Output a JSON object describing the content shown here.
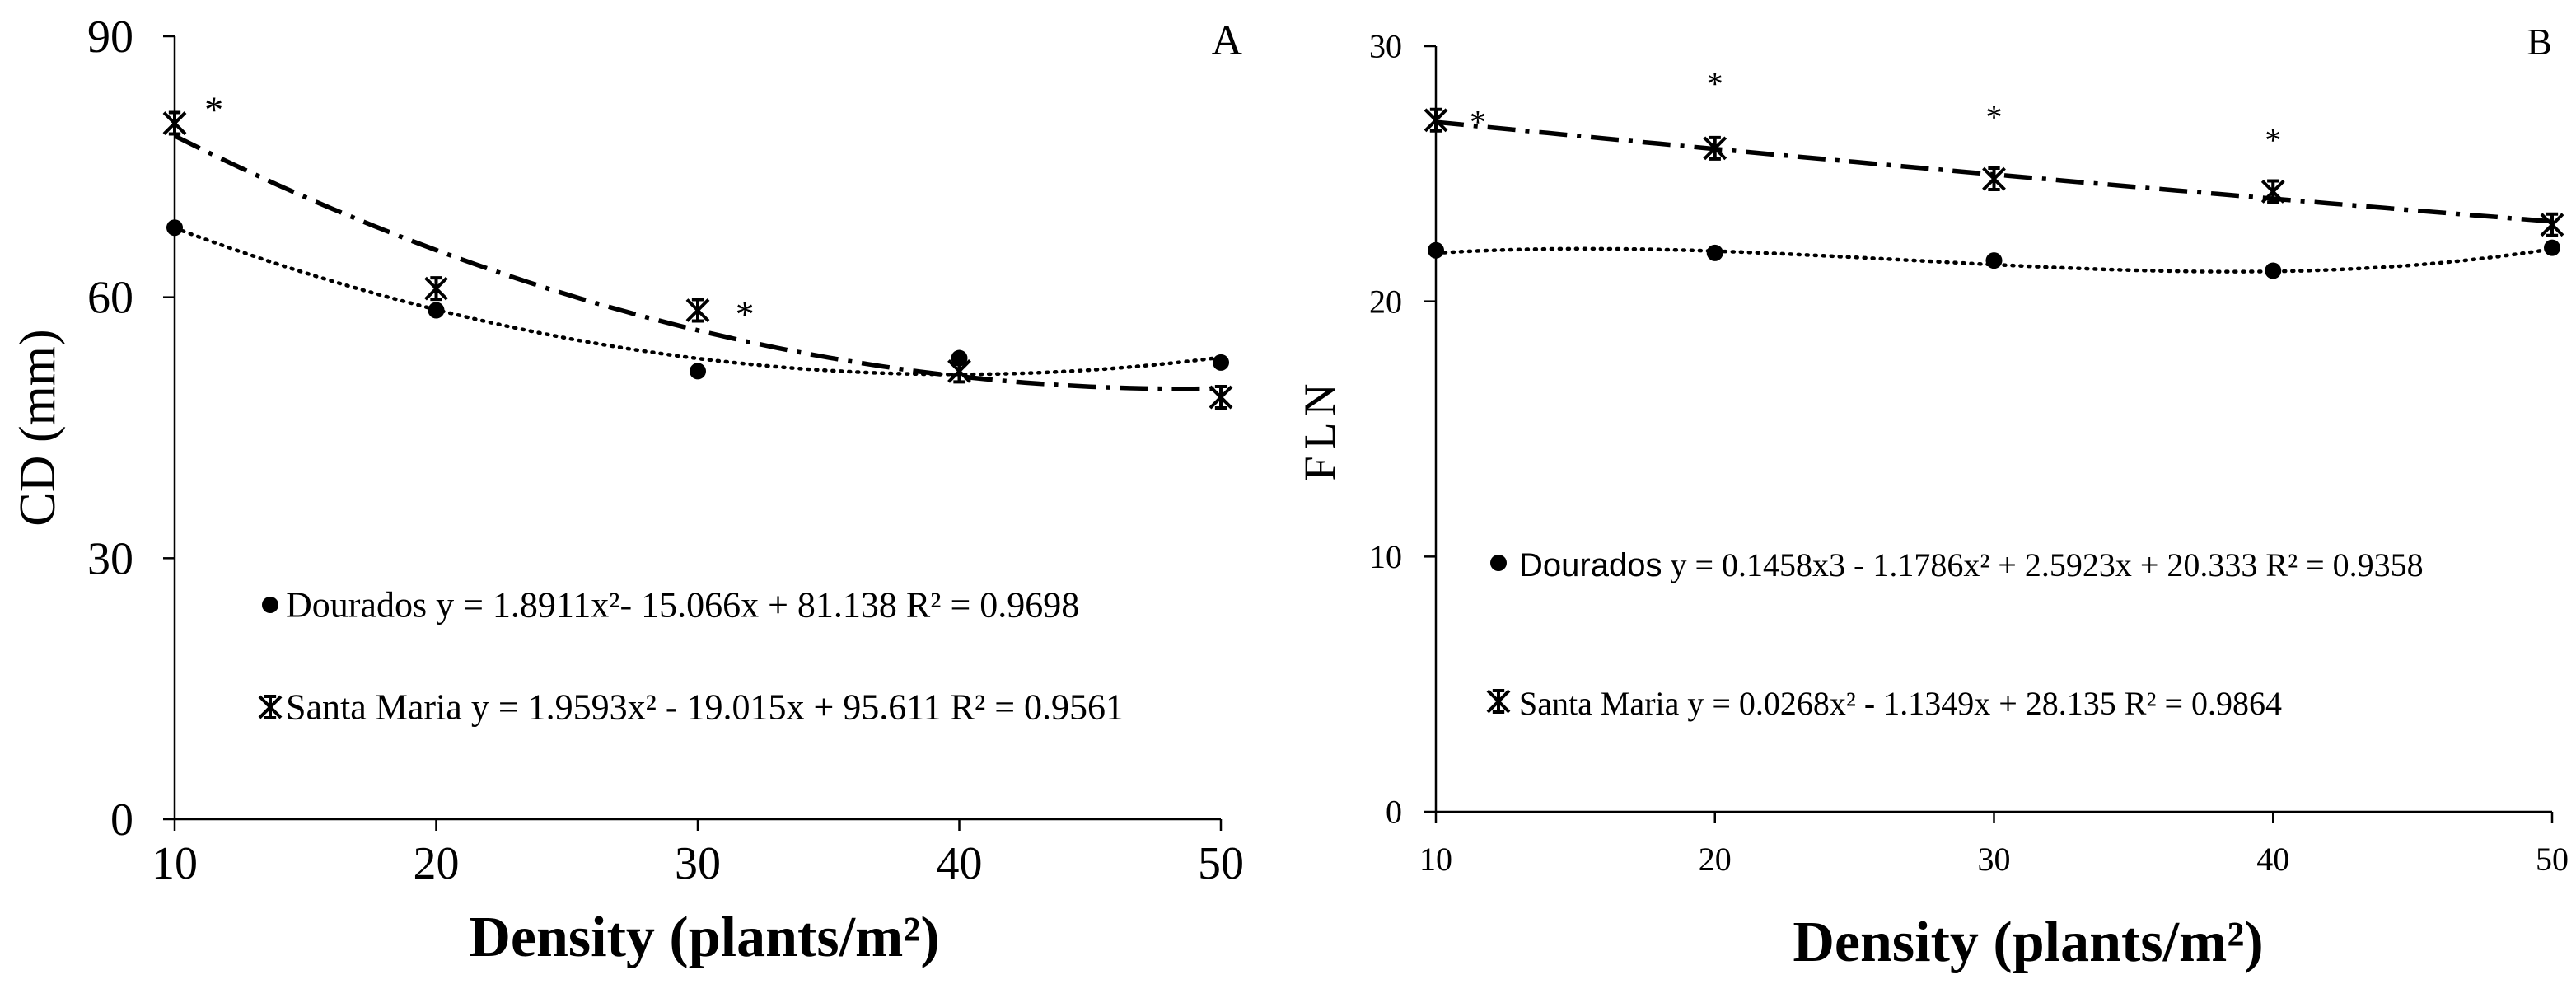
{
  "chart_data": [
    {
      "type": "scatter",
      "panel_label": "A",
      "xlabel": "Density (plants/m²)",
      "ylabel": "CD (mm)",
      "categories": [
        10,
        20,
        30,
        40,
        50
      ],
      "xlim": [
        10,
        50
      ],
      "ylim": [
        0,
        90
      ],
      "x_ticks": [
        "10",
        "20",
        "30",
        "40",
        "50"
      ],
      "y_ticks": [
        "0",
        "30",
        "60",
        "90"
      ],
      "series": [
        {
          "name": "Dourados",
          "marker": "circle",
          "x": [
            10,
            20,
            30,
            40,
            50
          ],
          "values": [
            68,
            58.5,
            51.5,
            53,
            52.5
          ],
          "fit": {
            "degree": 2,
            "a2": 1.8911,
            "a1": -15.066,
            "a0": 81.138,
            "style": "dotted"
          }
        },
        {
          "name": "Santa Maria",
          "marker": "star",
          "x": [
            10,
            20,
            30,
            40,
            50
          ],
          "values": [
            80,
            61,
            58.5,
            51.5,
            48.5
          ],
          "fit": {
            "degree": 2,
            "a2": 1.9593,
            "a1": -19.015,
            "a0": 95.611,
            "style": "dash-dot"
          }
        }
      ],
      "significance": [
        {
          "label": "*",
          "x": 11.5,
          "y": 82.5
        },
        {
          "label": "*",
          "x": 31.8,
          "y": 59
        }
      ],
      "legend": [
        {
          "series": "Dourados",
          "name": "Dourados",
          "equation": "y = 1.8911x²- 15.066x + 81.138 R² = 0.9698"
        },
        {
          "series": "Santa Maria",
          "name": "Santa Maria",
          "equation": "y = 1.9593x² - 19.015x + 95.611 R² = 0.9561"
        }
      ]
    },
    {
      "type": "scatter",
      "panel_label": "B",
      "xlabel": "Density (plants/m²)",
      "ylabel": "FLN",
      "categories": [
        10,
        20,
        30,
        40,
        50
      ],
      "xlim": [
        10,
        50
      ],
      "ylim": [
        0,
        30
      ],
      "x_ticks": [
        "10",
        "20",
        "30",
        "40",
        "50"
      ],
      "y_ticks": [
        "0",
        "10",
        "20",
        "30"
      ],
      "series": [
        {
          "name": "Dourados",
          "marker": "circle",
          "x": [
            10,
            20,
            30,
            40,
            50
          ],
          "values": [
            22,
            21.9,
            21.6,
            21.2,
            22.1
          ],
          "fit": {
            "degree": 3,
            "a3": 0.1458,
            "a2": -1.1786,
            "a1": 2.5923,
            "a0": 20.333,
            "style": "dotted"
          }
        },
        {
          "name": "Santa Maria",
          "marker": "star",
          "x": [
            10,
            20,
            30,
            40,
            50
          ],
          "values": [
            27.1,
            26,
            24.8,
            24.3,
            23
          ],
          "fit": {
            "degree": 2,
            "a2": 0.0268,
            "a1": -1.1349,
            "a0": 28.135,
            "style": "dash-dot"
          }
        }
      ],
      "significance": [
        {
          "label": "*",
          "x": 11.5,
          "y": 27.3
        },
        {
          "label": "*",
          "x": 20,
          "y": 28.8
        },
        {
          "label": "*",
          "x": 30,
          "y": 27.5
        },
        {
          "label": "*",
          "x": 40,
          "y": 26.6
        }
      ],
      "legend": [
        {
          "series": "Dourados",
          "name": "Dourados",
          "equation": "y = 0.1458x3 - 1.1786x² + 2.5923x + 20.333 R² = 0.9358"
        },
        {
          "series": "Santa Maria",
          "name": "Santa Maria",
          "equation": "y = 0.0268x² - 1.1349x + 28.135 R² = 0.9864"
        }
      ]
    }
  ]
}
